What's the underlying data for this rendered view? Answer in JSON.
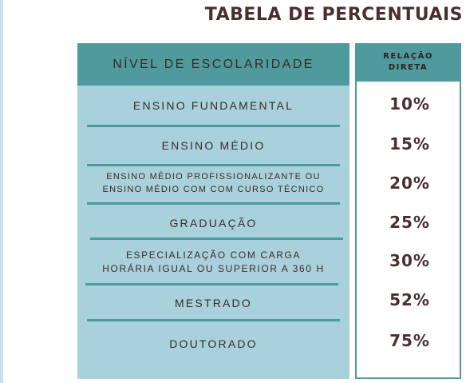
{
  "title": "TABELA DE PERCENTUAIS",
  "headers": {
    "level": "NÍVEL DE ESCOLARIDADE",
    "relation_line1": "RELAÇÃO",
    "relation_line2": "DIRETA"
  },
  "rows": [
    {
      "label": "ENSINO FUNDAMENTAL",
      "value": "10%"
    },
    {
      "label_line1": "ENSINO MÉDIO",
      "value": "15%"
    },
    {
      "label_line1": "ENSINO MÉDIO PROFISSIONALIZANTE OU",
      "label_line2": "ENSINO MÉDIO COM COM CURSO TÉCNICO",
      "value": "20%"
    },
    {
      "label": "GRADUAÇÃO",
      "value": "25%"
    },
    {
      "label_line1": "ESPECIALIZAÇÃO COM CARGA",
      "label_line2": "HORÁRIA IGUAL OU SUPERIOR A 360 H",
      "value": "30%"
    },
    {
      "label": "MESTRADO",
      "value": "52%"
    },
    {
      "label": "DOUTORADO",
      "value": "75%"
    }
  ],
  "colors": {
    "header_teal": "#4e9a9c",
    "panel_light_blue": "#a9d1db",
    "text_brown": "#4a2f2f",
    "edge_strip": "#c9e0ee"
  }
}
